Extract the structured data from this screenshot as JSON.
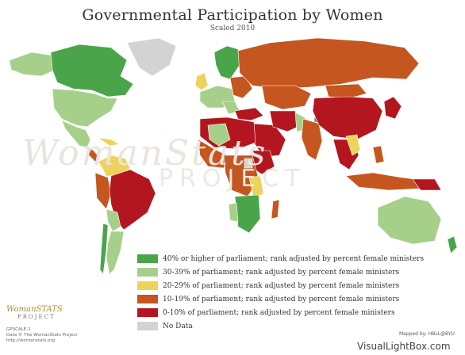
{
  "header": {
    "title": "Governmental Participation by Women",
    "subtitle": "Scaled 2010"
  },
  "colors": {
    "level_40_plus": "#4aa54a",
    "level_30_39": "#a6d08a",
    "level_20_29": "#ecd35c",
    "level_10_19": "#c5561f",
    "level_0_10": "#b3161f",
    "no_data": "#d3d3d3",
    "ocean": "#ffffff"
  },
  "legend": {
    "items": [
      {
        "label": "40% or higher of parliament; rank adjusted by percent female ministers",
        "color": "#4aa54a"
      },
      {
        "label": "30-39% of parliament; rank adjusted by percent female ministers",
        "color": "#a6d08a"
      },
      {
        "label": "20-29% of parliament; rank adjusted by percent female ministers",
        "color": "#ecd35c"
      },
      {
        "label": "10-19% of parliament; rank adjusted by percent female ministers",
        "color": "#c5561f"
      },
      {
        "label": "0-10% of parliament; rank adjusted by percent female ministers",
        "color": "#b3161f"
      },
      {
        "label": "No Data",
        "color": "#d3d3d3"
      }
    ]
  },
  "watermark": {
    "wordmark": "WomanStats",
    "project": "PROJECT"
  },
  "footer": {
    "logo_brand": "WomanSTATS",
    "logo_project": "PROJECT",
    "code": "GPSCALE-1",
    "data_credit": "Data © The WomanStats Project",
    "url": "http://womanstats.org",
    "mapped_by": "Mapped by: HBLL@BYU",
    "site_credit": "VisualLightBox.com"
  }
}
